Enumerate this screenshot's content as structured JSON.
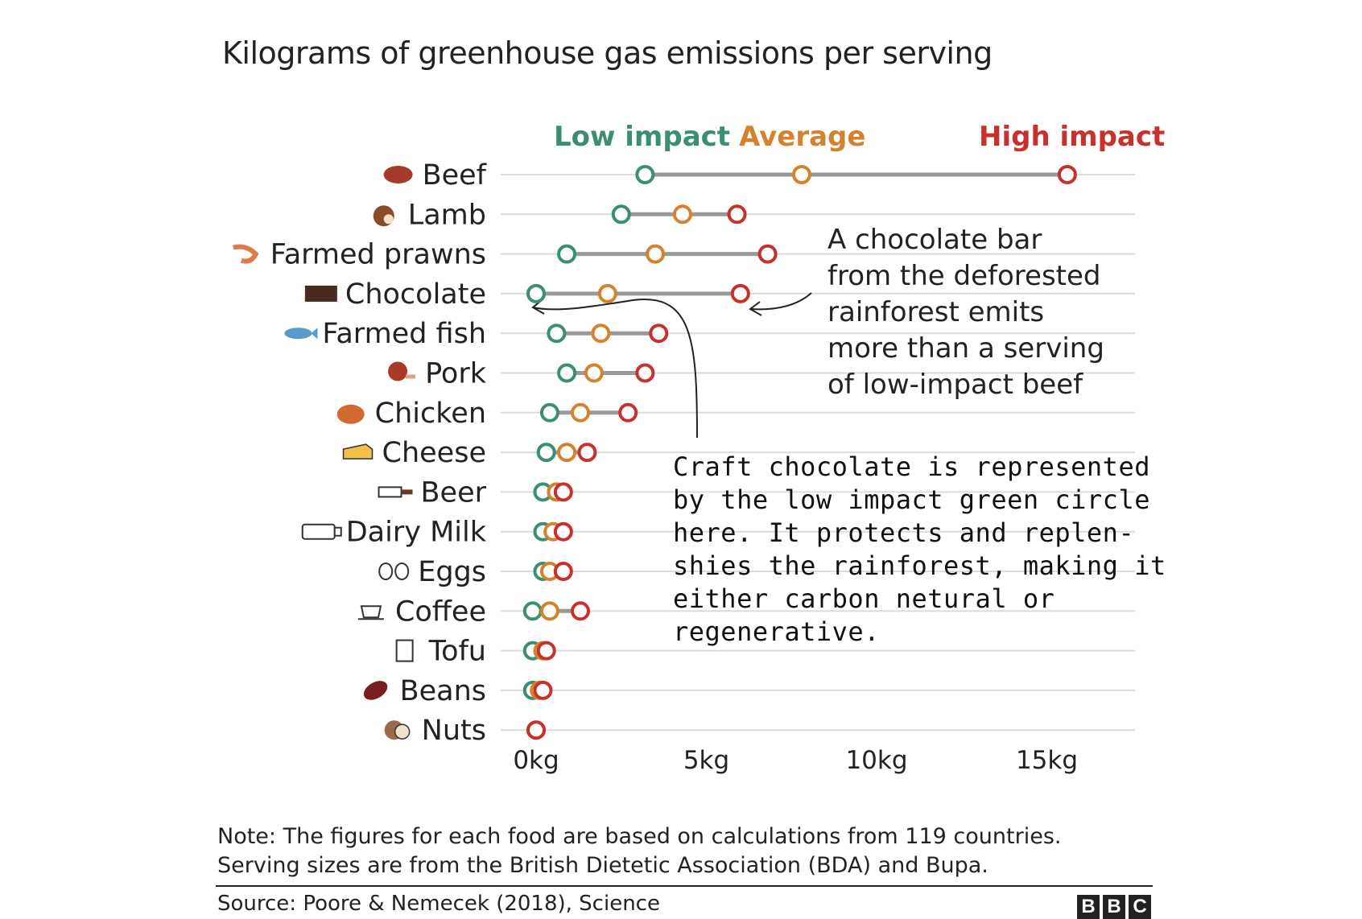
{
  "title": "Kilograms of greenhouse gas emissions per serving",
  "legend": {
    "low": {
      "label": "Low impact",
      "color": "#3a8f73"
    },
    "average": {
      "label": "Average",
      "color": "#d4822d"
    },
    "high": {
      "label": "High impact",
      "color": "#c8302c"
    }
  },
  "annotations": {
    "deforest": "A chocolate bar\nfrom the deforested\nrainforest emits\nmore than a serving\nof low-impact beef",
    "craft": "Craft chocolate is represented\nby the low impact green circle\nhere. It protects and replen-\nshies the rainforest, making it\neither carbon netural or\nregenerative."
  },
  "note": "Note: The figures for each food are based on calculations from 119 countries.\nServing sizes are from the British Dietetic Association (BDA) and Bupa.",
  "source": "Source: Poore & Nemecek (2018), Science",
  "logo": [
    "B",
    "B",
    "C"
  ],
  "chart_data": {
    "type": "dot-range",
    "title": "Kilograms of greenhouse gas emissions per serving",
    "x_ticks": [
      "0kg",
      "5kg",
      "10kg",
      "15kg"
    ],
    "xlim": [
      0,
      17.5
    ],
    "categories": [
      "Beef",
      "Lamb",
      "Farmed prawns",
      "Chocolate",
      "Farmed fish",
      "Pork",
      "Chicken",
      "Cheese",
      "Beer",
      "Dairy Milk",
      "Eggs",
      "Coffee",
      "Tofu",
      "Beans",
      "Nuts"
    ],
    "icons": [
      "steak-icon",
      "lamb-icon",
      "prawn-icon",
      "chocolate-icon",
      "fish-icon",
      "pork-icon",
      "chicken-icon",
      "cheese-icon",
      "beer-icon",
      "milk-icon",
      "eggs-icon",
      "coffee-icon",
      "tofu-icon",
      "beans-icon",
      "nuts-icon"
    ],
    "series": [
      {
        "name": "Low impact",
        "color": "#3a8f73",
        "values": [
          3.2,
          2.5,
          0.9,
          0.0,
          0.6,
          0.9,
          0.4,
          0.3,
          0.2,
          0.2,
          0.2,
          -0.1,
          -0.1,
          -0.1,
          0.0
        ]
      },
      {
        "name": "Average",
        "color": "#d4822d",
        "values": [
          7.8,
          4.3,
          3.5,
          2.1,
          1.9,
          1.7,
          1.3,
          0.9,
          0.6,
          0.5,
          0.4,
          0.4,
          0.2,
          0.1,
          0.0
        ]
      },
      {
        "name": "High impact",
        "color": "#c8302c",
        "values": [
          15.6,
          5.9,
          6.8,
          6.0,
          3.6,
          3.2,
          2.7,
          1.5,
          0.8,
          0.8,
          0.8,
          1.3,
          0.3,
          0.2,
          0.0
        ]
      }
    ],
    "grid": true
  }
}
